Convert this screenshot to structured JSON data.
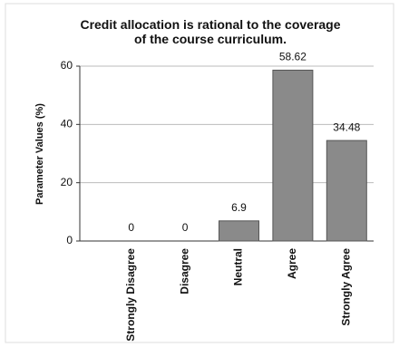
{
  "chart_data": {
    "type": "bar",
    "title": "Credit allocation is rational to the coverage of the course curriculum.",
    "y_label": "Parameter Values (%)",
    "categories": [
      "Strongly Disagree",
      "Disagree",
      "Neutral",
      "Agree",
      "Strongly Agree"
    ],
    "values": [
      0,
      0,
      6.9,
      58.62,
      34.48
    ],
    "color": "#8a8a8a",
    "ylim": [
      0,
      60
    ],
    "yticks": [
      0,
      20,
      40,
      60
    ],
    "grid": true
  }
}
